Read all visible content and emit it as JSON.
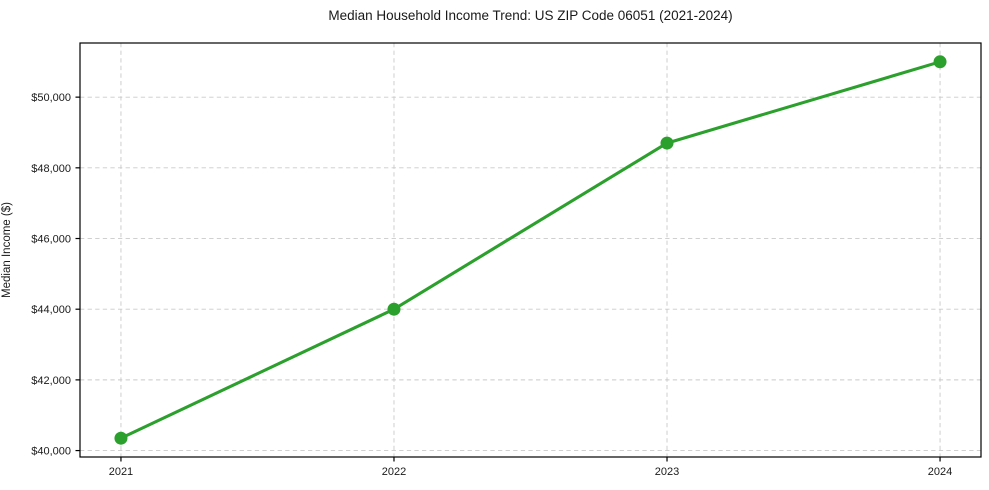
{
  "chart_data": {
    "type": "line",
    "title": "Median Household Income Trend: US ZIP Code 06051 (2021-2024)",
    "xlabel": "",
    "ylabel": "Median Income ($)",
    "x": [
      2021,
      2022,
      2023,
      2024
    ],
    "series": [
      {
        "name": "Median Household Income",
        "values": [
          40350,
          44000,
          48700,
          51000
        ]
      }
    ],
    "xticks": [
      2021,
      2022,
      2023,
      2024
    ],
    "xtick_labels": [
      "2021",
      "2022",
      "2023",
      "2024"
    ],
    "yticks": [
      40000,
      42000,
      44000,
      46000,
      48000,
      50000
    ],
    "ytick_labels": [
      "$40,000",
      "$42,000",
      "$44,000",
      "$46,000",
      "$48,000",
      "$50,000"
    ],
    "xlim": [
      2020.85,
      2024.15
    ],
    "ylim": [
      39818,
      51532
    ],
    "grid": true,
    "grid_style": "dashed",
    "legend": "none",
    "marker": "circle",
    "colors": {
      "line": "#2ca02c",
      "marker": "#2ca02c",
      "grid": "#c9c9c9",
      "spine": "#000000",
      "text": "#1a1a1a",
      "background": "#ffffff"
    }
  }
}
